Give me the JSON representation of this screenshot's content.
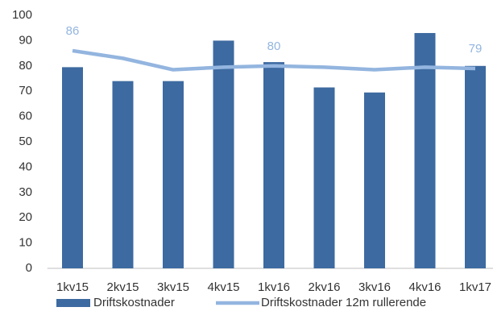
{
  "chart_data": {
    "type": "bar",
    "categories": [
      "1kv15",
      "2kv15",
      "3kv15",
      "4kv15",
      "1kv16",
      "2kv16",
      "3kv16",
      "4kv16",
      "1kv17"
    ],
    "series": [
      {
        "name": "Driftskostnader",
        "type": "bar",
        "color": "#3d6aa0",
        "values": [
          79.5,
          74,
          74,
          90,
          81.5,
          71.5,
          69.5,
          93,
          80
        ]
      },
      {
        "name": "Driftskostnader 12m rullerende",
        "type": "line",
        "color": "#93b5df",
        "values": [
          86,
          83,
          78.5,
          79.5,
          80,
          79.5,
          78.5,
          79.5,
          79
        ],
        "value_labels": [
          "86",
          null,
          null,
          null,
          "80",
          null,
          null,
          null,
          "79"
        ]
      }
    ],
    "ylim": [
      0,
      100
    ],
    "yticks": [
      0,
      10,
      20,
      30,
      40,
      50,
      60,
      70,
      80,
      90,
      100
    ],
    "legend": "bottom"
  }
}
